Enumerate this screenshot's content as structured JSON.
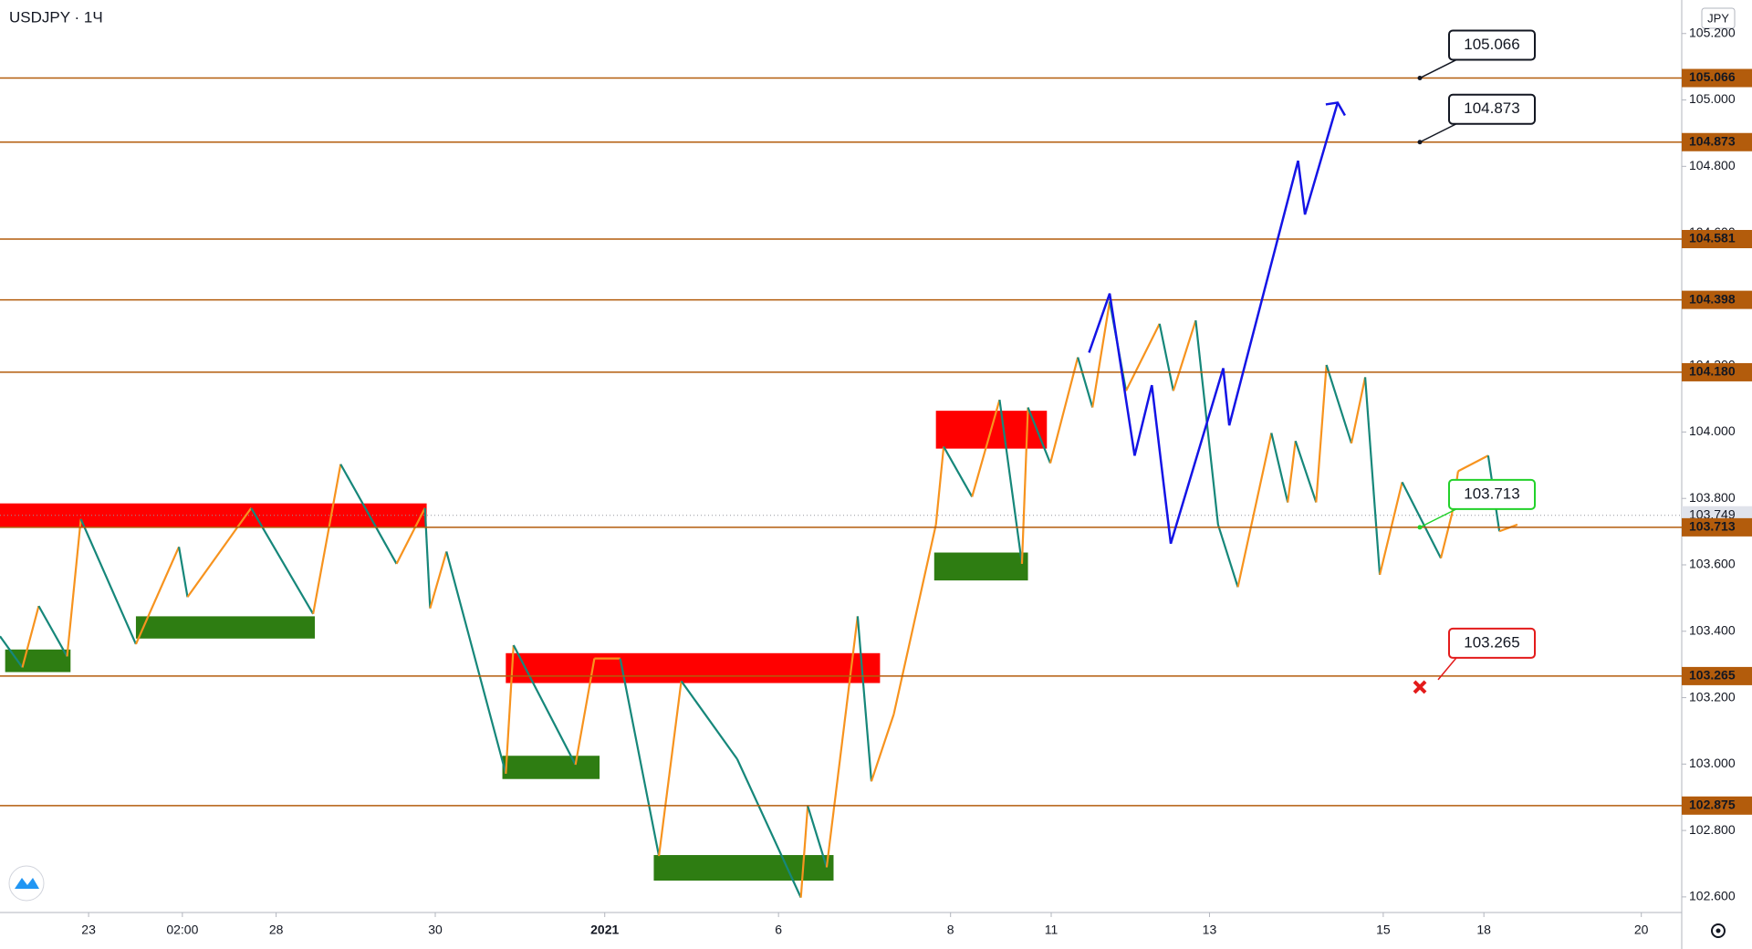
{
  "chart_data": {
    "type": "line",
    "title": "USDJPY · 1Ч",
    "currency": "JPY",
    "xlim": [
      0,
      19.55
    ],
    "xticks": [
      {
        "value": 1.03,
        "label": "23"
      },
      {
        "value": 2.12,
        "label": "02:00"
      },
      {
        "value": 3.21,
        "label": "28"
      },
      {
        "value": 5.06,
        "label": "30"
      },
      {
        "value": 7.03,
        "label": "2021"
      },
      {
        "value": 9.05,
        "label": "6"
      },
      {
        "value": 11.05,
        "label": "8"
      },
      {
        "value": 12.22,
        "label": "11"
      },
      {
        "value": 14.06,
        "label": "13"
      },
      {
        "value": 16.08,
        "label": "15"
      },
      {
        "value": 17.25,
        "label": "18"
      },
      {
        "value": 19.08,
        "label": "20"
      }
    ],
    "ylim": [
      102.553,
      105.301
    ],
    "yticks": [
      {
        "value": 102.6,
        "label": "102.600"
      },
      {
        "value": 102.8,
        "label": "102.800"
      },
      {
        "value": 103.0,
        "label": "103.000"
      },
      {
        "value": 103.2,
        "label": "103.200"
      },
      {
        "value": 103.4,
        "label": "103.400"
      },
      {
        "value": 103.6,
        "label": "103.600"
      },
      {
        "value": 103.8,
        "label": "103.800"
      },
      {
        "value": 104.0,
        "label": "104.000"
      },
      {
        "value": 104.2,
        "label": "104.200"
      },
      {
        "value": 104.4,
        "label": "104.400"
      },
      {
        "value": 104.6,
        "label": "104.600"
      },
      {
        "value": 104.8,
        "label": "104.800"
      },
      {
        "value": 105.0,
        "label": "105.000"
      },
      {
        "value": 105.2,
        "label": "105.200"
      }
    ],
    "x": [
      0,
      0.26,
      0.45,
      0.78,
      0.94,
      1.58,
      2.08,
      2.18,
      2.92,
      3.64,
      3.96,
      4.61,
      4.94,
      5.0,
      5.19,
      5.88,
      5.97,
      6.69,
      6.91,
      7.21,
      7.66,
      7.92,
      8.57,
      9.31,
      9.39,
      9.61,
      9.97,
      10.13,
      10.39,
      10.88,
      10.97,
      11.3,
      11.62,
      11.88,
      11.95,
      12.21,
      12.53,
      12.7,
      12.9,
      13.09,
      13.48,
      13.64,
      13.9,
      14.16,
      14.39,
      14.78,
      14.97,
      15.06,
      15.3,
      15.42,
      15.71,
      15.87,
      16.04,
      16.3,
      16.75,
      16.88,
      16.95,
      17.3,
      17.43,
      17.64
    ],
    "values": [
      103.385,
      103.291,
      103.476,
      103.324,
      103.738,
      103.361,
      103.654,
      103.503,
      103.771,
      103.452,
      103.903,
      103.603,
      103.771,
      103.469,
      103.64,
      102.971,
      103.358,
      102.998,
      103.318,
      103.318,
      102.723,
      103.25,
      103.015,
      102.598,
      102.874,
      102.689,
      103.445,
      102.948,
      103.15,
      103.721,
      103.956,
      103.805,
      104.097,
      103.603,
      104.074,
      103.906,
      104.225,
      104.074,
      104.393,
      104.124,
      104.326,
      104.124,
      104.336,
      103.721,
      103.533,
      103.997,
      103.788,
      103.973,
      103.788,
      104.202,
      103.966,
      104.165,
      103.57,
      103.849,
      103.62,
      103.755,
      103.882,
      103.929,
      103.701,
      103.721
    ],
    "up_color": "#f7931e",
    "down_color": "#16877a",
    "last_price": {
      "value": 103.749
    },
    "level_color": "#b35c0c",
    "levels": [
      {
        "value": 105.066,
        "callout": "#131722"
      },
      {
        "value": 104.873,
        "callout": "#131722"
      },
      {
        "value": 104.581
      },
      {
        "value": 104.398
      },
      {
        "value": 104.18,
        "label": "104.180"
      },
      {
        "value": 103.713,
        "callout": "#22d12a"
      },
      {
        "value": 103.265,
        "callout": "#e31b1b"
      },
      {
        "value": 102.875
      }
    ],
    "zones": [
      {
        "x": [
          0,
          4.96
        ],
        "y": [
          103.714,
          103.785
        ],
        "color": "#ff0000"
      },
      {
        "x": [
          5.88,
          10.23
        ],
        "y": [
          103.244,
          103.334
        ],
        "color": "#ff0000"
      },
      {
        "x": [
          10.88,
          12.17
        ],
        "y": [
          103.95,
          104.064
        ],
        "color": "#ff0000"
      },
      {
        "x": [
          0.06,
          0.82
        ],
        "y": [
          103.277,
          103.345
        ],
        "color": "#2e7d12"
      },
      {
        "x": [
          1.58,
          3.66
        ],
        "y": [
          103.378,
          103.445
        ],
        "color": "#2e7d12"
      },
      {
        "x": [
          5.84,
          6.97
        ],
        "y": [
          102.955,
          103.025
        ],
        "color": "#2e7d12"
      },
      {
        "x": [
          7.6,
          9.69
        ],
        "y": [
          102.649,
          102.726
        ],
        "color": "#2e7d12"
      },
      {
        "x": [
          10.86,
          11.95
        ],
        "y": [
          103.553,
          103.637
        ],
        "color": "#2e7d12"
      }
    ],
    "projection": {
      "color": "#1414e6",
      "x": [
        12.66,
        12.9,
        13.19,
        13.39,
        13.61,
        14.22,
        14.29,
        15.09,
        15.17,
        15.55
      ],
      "values": [
        104.239,
        104.417,
        103.929,
        104.141,
        103.664,
        104.192,
        104.02,
        104.817,
        104.655,
        104.992
      ]
    }
  }
}
